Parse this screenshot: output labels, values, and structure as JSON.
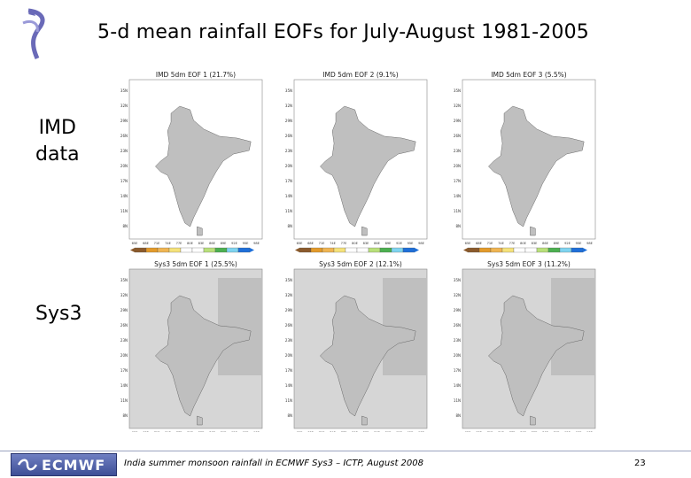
{
  "title": "5-d mean rainfall EOFs for July-August 1981-2005",
  "rows": {
    "imd": {
      "line1": "IMD",
      "line2": "data"
    },
    "sys3": {
      "label": "Sys3"
    }
  },
  "panels": [
    {
      "title": "IMD 5dm EOF 1 (21.7%)",
      "pattern": "imd1",
      "ocean": "white",
      "colorbar": true
    },
    {
      "title": "IMD 5dm EOF 2 (9.1%)",
      "pattern": "imd2",
      "ocean": "white",
      "colorbar": true
    },
    {
      "title": "IMD 5dm EOF 3 (5.5%)",
      "pattern": "imd3",
      "ocean": "white",
      "colorbar": true
    },
    {
      "title": "Sys3 5dm EOF 1 (25.5%)",
      "pattern": "sys1",
      "ocean": "grey",
      "colorbar": false
    },
    {
      "title": "Sys3 5dm EOF 2 (12.1%)",
      "pattern": "sys2",
      "ocean": "grey",
      "colorbar": false
    },
    {
      "title": "Sys3 5dm EOF 3 (11.2%)",
      "pattern": "sys3",
      "ocean": "grey",
      "colorbar": false
    }
  ],
  "footer": {
    "logo_text": "ECMWF",
    "text": "India summer monsoon rainfall in ECMWF Sys3 – ICTP, August 2008",
    "page": "23"
  },
  "colors": {
    "land": "#bfbfbf",
    "sea_grey": "#d6d6d6",
    "brown": "#8b5a2b",
    "orange": "#e39a2a",
    "yellow": "#f5e27a",
    "lightgreen": "#b8e07a",
    "green": "#4caf50",
    "darkgreen": "#2e7d32",
    "lightblue": "#7fd4f0",
    "blue": "#1e6fd9"
  }
}
